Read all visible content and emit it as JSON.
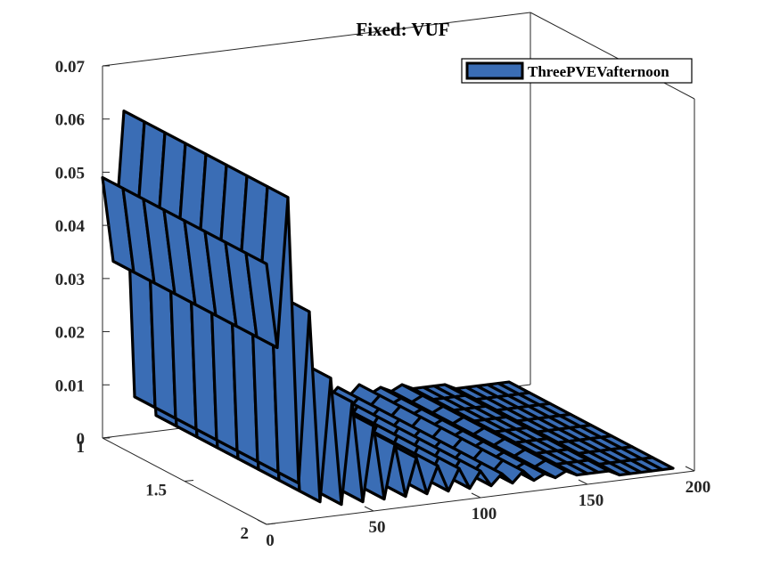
{
  "chart_data": {
    "type": "area",
    "projection": "3d",
    "title": "Fixed: VUF",
    "xlabel": "",
    "ylabel": "",
    "zlabel": "",
    "x_ticks": [
      "0",
      "50",
      "100",
      "150",
      "200"
    ],
    "y_ticks": [
      "1",
      "1.5",
      "2"
    ],
    "z_ticks": [
      "0",
      "0.01",
      "0.02",
      "0.03",
      "0.04",
      "0.05",
      "0.06",
      "0.07"
    ],
    "xlim": [
      0,
      200
    ],
    "ylim": [
      1,
      2
    ],
    "zlim": [
      0,
      0.07
    ],
    "grid": false,
    "legend_position": "top-right",
    "series": [
      {
        "name": "ThreePVEVafternoon",
        "color": "#3a6db5",
        "edge_color": "#000000",
        "x": [
          0,
          5,
          10,
          15,
          20,
          25,
          30,
          35,
          40,
          45,
          50,
          55,
          60,
          65,
          70,
          75,
          80,
          85,
          90,
          95,
          100,
          105,
          110,
          115,
          120,
          125,
          130,
          135,
          140,
          145,
          150,
          155,
          160,
          165,
          170,
          175,
          180,
          185,
          190
        ],
        "values": [
          0.049,
          0.033,
          0.061,
          0.007,
          0.039,
          0.003,
          0.026,
          0.002,
          0.021,
          0.002,
          0.016,
          0.002,
          0.012,
          0.002,
          0.009,
          0.002,
          0.007,
          0.002,
          0.006,
          0.002,
          0.005,
          0.002,
          0.004,
          0.002,
          0.004,
          0.002,
          0.003,
          0.002,
          0.003,
          0.002,
          0.002,
          0.002,
          0.002,
          0.001,
          0.001,
          0.001,
          0.001,
          0.001,
          0.001
        ]
      }
    ]
  }
}
